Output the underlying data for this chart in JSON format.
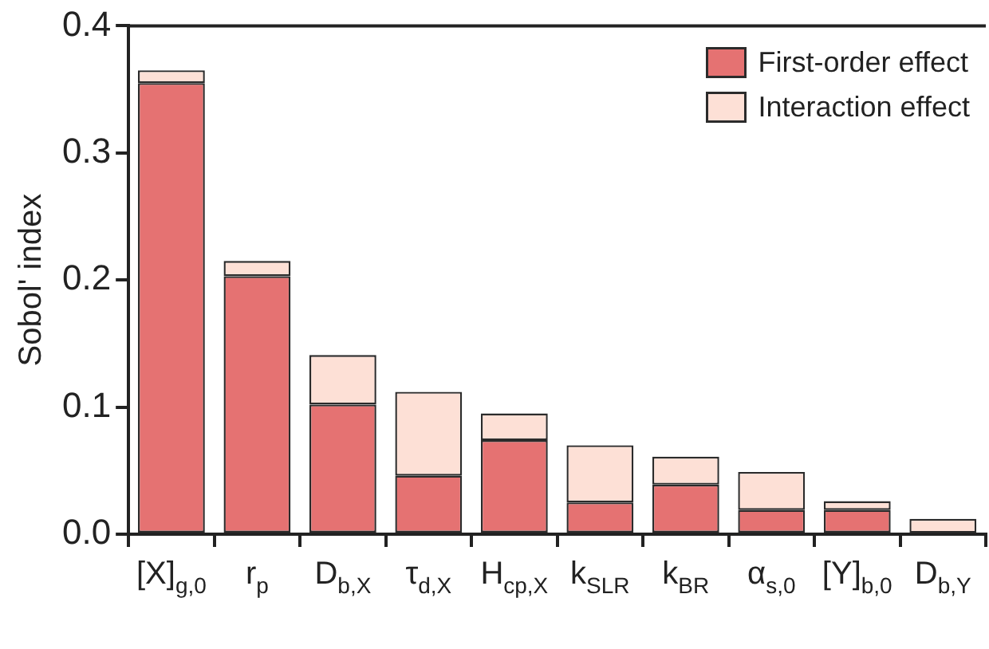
{
  "chart_data": {
    "type": "bar",
    "stacked": true,
    "ylabel": "Sobol' index",
    "categories": [
      "[X]$_{g,0}$",
      "r$_{p}$",
      "D$_{b,X}$",
      "τ$_{d,X}$",
      "H$_{cp,X}$",
      "k$_{SLR}$",
      "k$_{BR}$",
      "α$_{s,0}$",
      "[Y]$_{b,0}$",
      "D$_{b,Y}$"
    ],
    "series": [
      {
        "name": "First-order effect",
        "color": "#e57272",
        "values": [
          0.355,
          0.203,
          0.102,
          0.046,
          0.074,
          0.025,
          0.039,
          0.019,
          0.019,
          0.001
        ]
      },
      {
        "name": "Interaction effect",
        "color": "#fde0d6",
        "values": [
          0.01,
          0.012,
          0.039,
          0.066,
          0.021,
          0.045,
          0.022,
          0.03,
          0.007,
          0.011
        ]
      }
    ],
    "ylim": [
      0,
      0.4
    ],
    "yticks": [
      "0.0",
      0.1,
      0.2,
      0.3,
      0.4
    ],
    "grid": false,
    "legend": "top right"
  }
}
